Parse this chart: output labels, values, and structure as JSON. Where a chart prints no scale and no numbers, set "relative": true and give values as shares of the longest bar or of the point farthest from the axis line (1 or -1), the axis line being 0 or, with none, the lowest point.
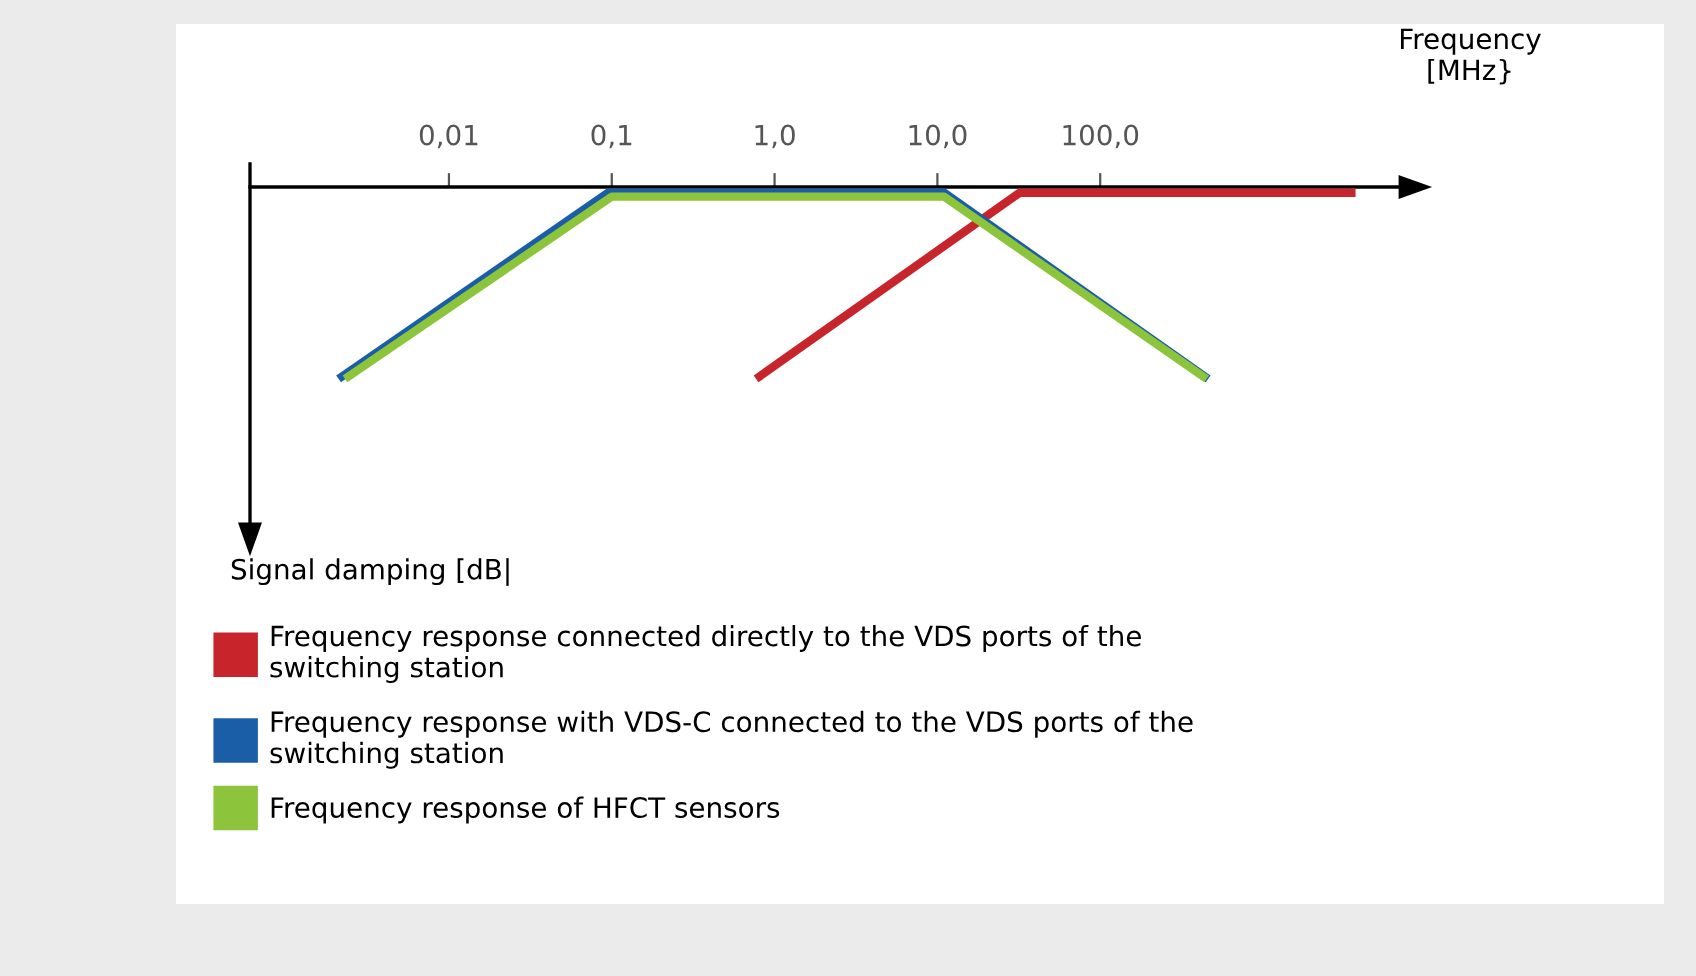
{
  "chart_data": {
    "type": "line",
    "relative": true,
    "xlabel": "Frequency\n[MHz}",
    "annotations": [
      "Signal damping [dB|"
    ],
    "log": "x",
    "xlim": [
      0.0006,
      8700
    ],
    "xticks": [
      {
        "value": 0.01,
        "label": "0,01"
      },
      {
        "value": 0.1,
        "label": "0,1"
      },
      {
        "value": 1,
        "label": "1,0"
      },
      {
        "value": 10,
        "label": "10,0"
      },
      {
        "value": 100,
        "label": "100,0"
      }
    ],
    "grid": false,
    "legend": "bottom",
    "marker": "none",
    "line_style": "solid",
    "series": [
      {
        "name": "Frequency response connected directly to the VDS ports of the\nswitching station",
        "color": "#c8242b",
        "x": [
          0.77,
          32,
          3700
        ],
        "values": [
          -1,
          -0.03,
          -0.03
        ]
      },
      {
        "name": "Frequency response with VDS-C connected to the VDS ports of the\nswitching station",
        "color": "#1a5ea8",
        "x": [
          0.0021,
          0.095,
          11,
          460
        ],
        "values": [
          -1,
          -0.03,
          -0.03,
          -1
        ]
      },
      {
        "name": "Frequency response of HFCT sensors",
        "color": "#8cc43c",
        "x": [
          0.0023,
          0.1,
          11,
          450
        ],
        "values": [
          -1,
          -0.05,
          -0.05,
          -1
        ]
      }
    ]
  }
}
